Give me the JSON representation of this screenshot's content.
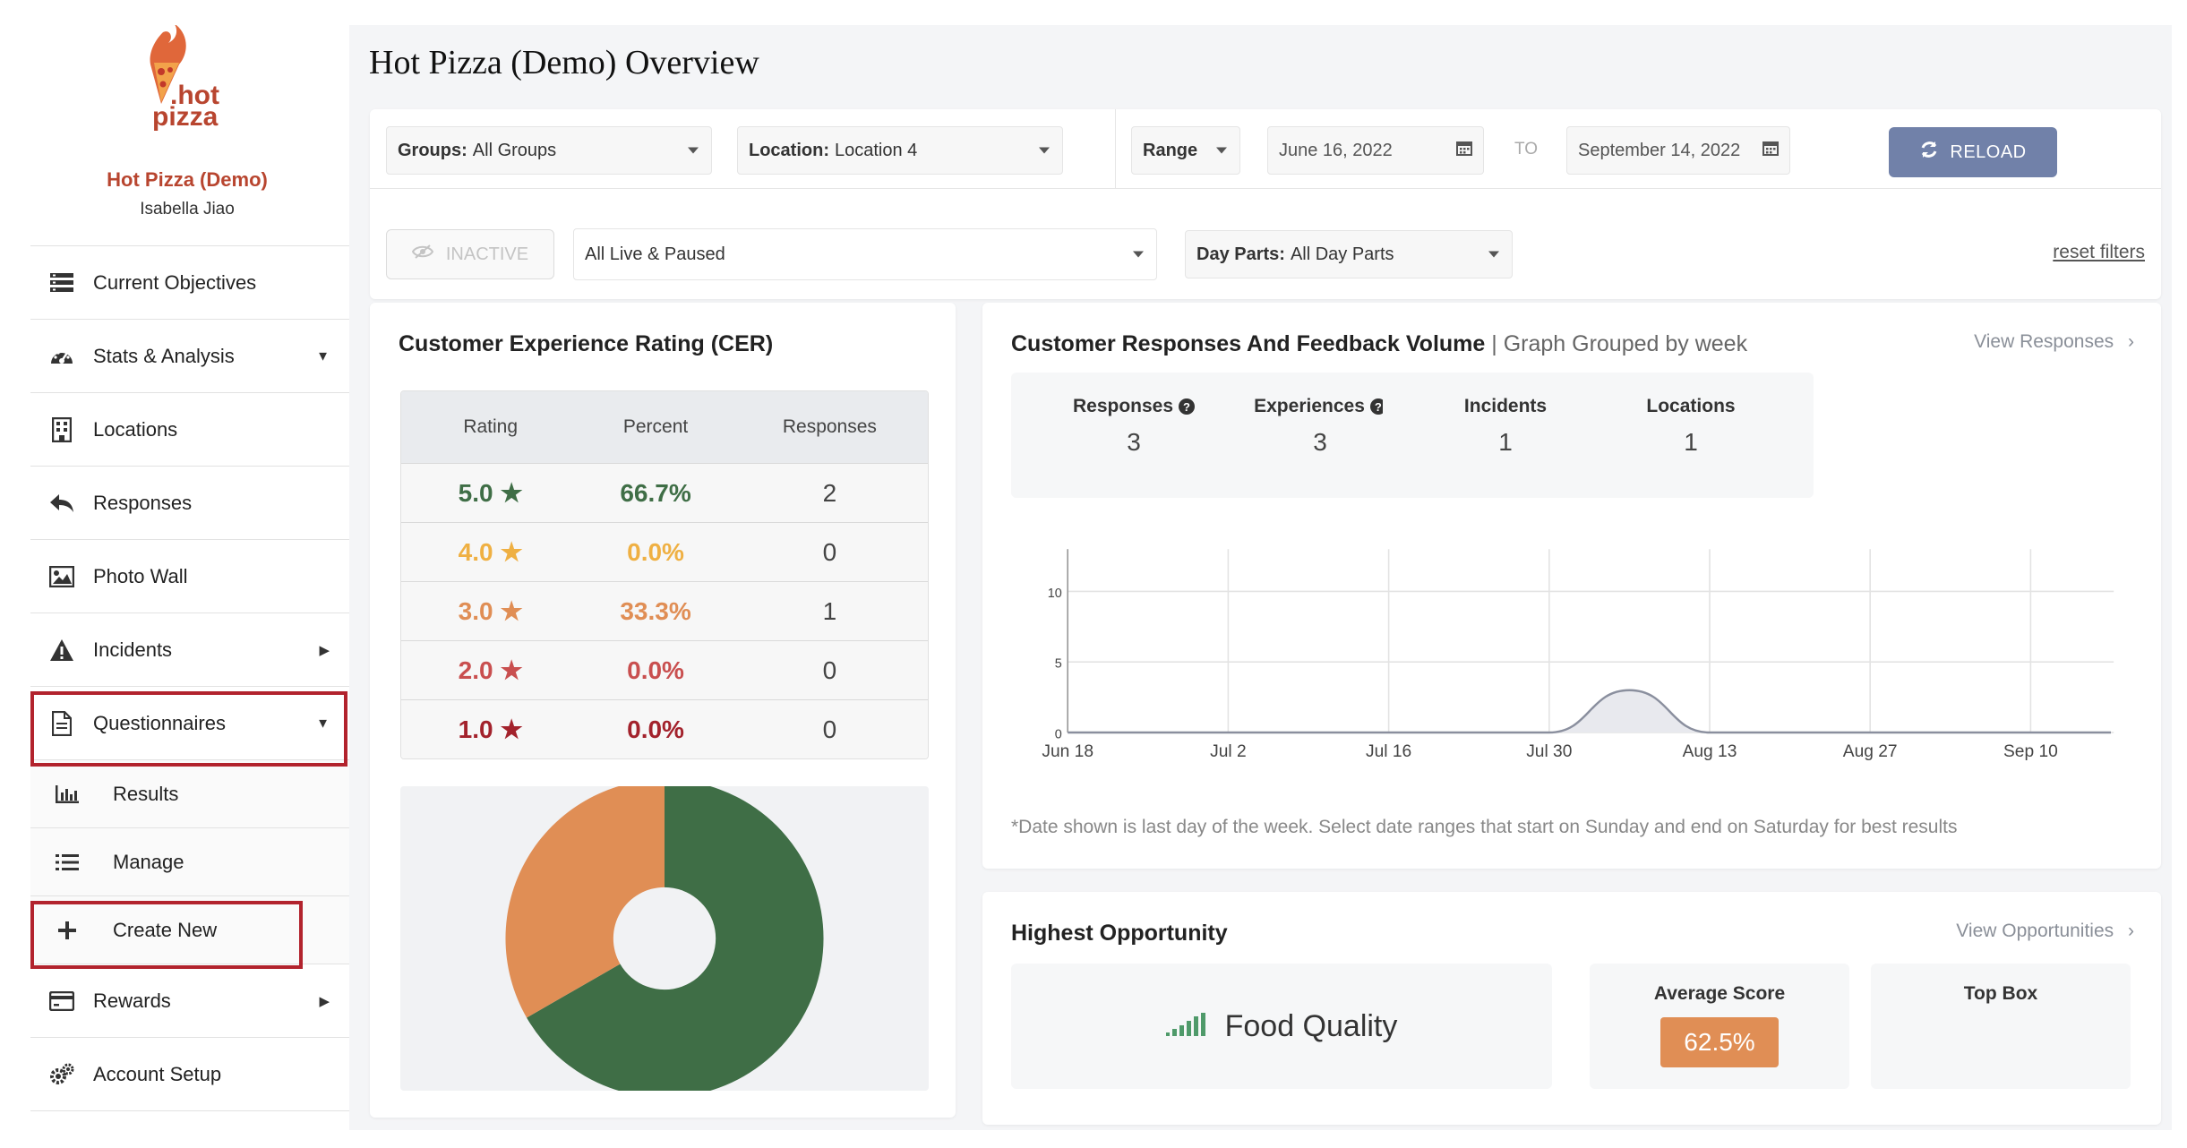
{
  "app": {
    "brand_name": "Hot Pizza (Demo)",
    "user_name": "Isabella Jiao",
    "logo_text": "hot pizza"
  },
  "sidebar": {
    "items": [
      {
        "label": "Current Objectives"
      },
      {
        "label": "Stats & Analysis"
      },
      {
        "label": "Locations"
      },
      {
        "label": "Responses"
      },
      {
        "label": "Photo Wall"
      },
      {
        "label": "Incidents"
      },
      {
        "label": "Questionnaires"
      },
      {
        "label": "Results"
      },
      {
        "label": "Manage"
      },
      {
        "label": "Create New"
      },
      {
        "label": "Rewards"
      },
      {
        "label": "Account Setup"
      }
    ]
  },
  "page": {
    "title": "Hot Pizza (Demo) Overview"
  },
  "filters": {
    "groups_label": "Groups:",
    "groups_value": "All Groups",
    "location_label": "Location:",
    "location_value": "Location 4",
    "range_label": "Range",
    "date_from": "June 16, 2022",
    "to_label": "TO",
    "date_to": "September 14, 2022",
    "reload_label": "RELOAD",
    "inactive_label": "INACTIVE",
    "status_value": "All Live & Paused",
    "dayparts_label": "Day Parts:",
    "dayparts_value": "All Day Parts",
    "reset_label": "reset filters"
  },
  "cer": {
    "title": "Customer Experience Rating (CER)",
    "headers": {
      "rating": "Rating",
      "percent": "Percent",
      "responses": "Responses"
    },
    "rows": [
      {
        "rating": "5.0",
        "percent": "66.7%",
        "responses": "2",
        "color": "#3f6e46"
      },
      {
        "rating": "4.0",
        "percent": "0.0%",
        "responses": "0",
        "color": "#efb043"
      },
      {
        "rating": "3.0",
        "percent": "33.3%",
        "responses": "1",
        "color": "#e08e55"
      },
      {
        "rating": "2.0",
        "percent": "0.0%",
        "responses": "0",
        "color": "#c94f4f"
      },
      {
        "rating": "1.0",
        "percent": "0.0%",
        "responses": "0",
        "color": "#a3222c"
      }
    ],
    "pie": {
      "slices": [
        {
          "label": "5.0",
          "value": 66.7,
          "color": "#3f6e46"
        },
        {
          "label": "3.0",
          "value": 33.3,
          "color": "#e08e55"
        }
      ]
    }
  },
  "volume": {
    "title": "Customer Responses And Feedback Volume",
    "subtitle": "| Graph Grouped by week",
    "view_label": "View Responses",
    "stats": [
      {
        "label": "Responses",
        "value": "3",
        "help": true
      },
      {
        "label": "Experiences",
        "value": "3",
        "help": true
      },
      {
        "label": "Incidents",
        "value": "1",
        "help": false
      },
      {
        "label": "Locations",
        "value": "1",
        "help": false
      }
    ],
    "footnote": "*Date shown is last day of the week. Select date ranges that start on Sunday and end on Saturday for best results"
  },
  "chart_data": {
    "type": "area",
    "x": [
      "Jun 18",
      "Jun 25",
      "Jul 2",
      "Jul 9",
      "Jul 16",
      "Jul 23",
      "Jul 30",
      "Aug 6",
      "Aug 13",
      "Aug 20",
      "Aug 27",
      "Sep 3",
      "Sep 10",
      "Sep 14"
    ],
    "xticks": [
      "Jun 18",
      "Jul 2",
      "Jul 16",
      "Jul 30",
      "Aug 13",
      "Aug 27",
      "Sep 10"
    ],
    "values": [
      0,
      0,
      0,
      0,
      0,
      0,
      0,
      3,
      0,
      0,
      0,
      0,
      0,
      0
    ],
    "yticks": [
      "0",
      "5",
      "10"
    ],
    "ylim": [
      0,
      13
    ],
    "color": "#8a8f9e"
  },
  "opportunity": {
    "title": "Highest Opportunity",
    "view_label": "View Opportunities",
    "item": "Food Quality",
    "avg_label": "Average Score",
    "avg_value": "62.5%",
    "topbox_label": "Top Box"
  }
}
